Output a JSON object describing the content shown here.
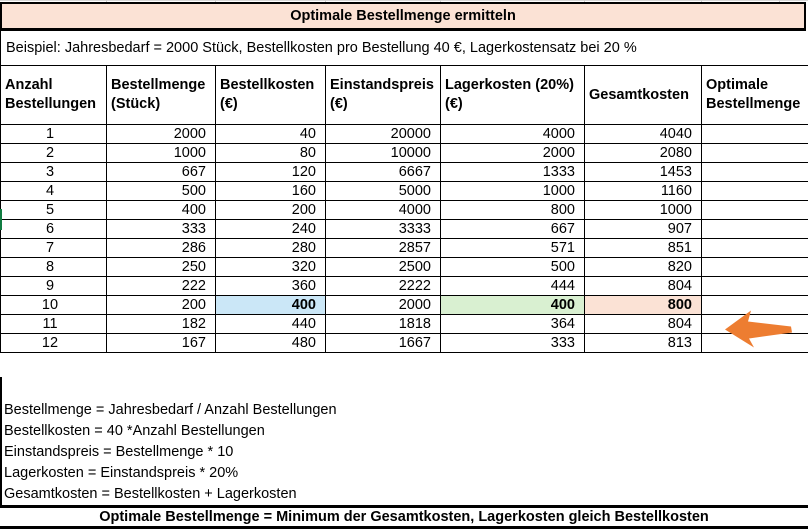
{
  "title": "Optimale Bestellmenge ermitteln",
  "example": "Beispiel: Jahresbedarf = 2000 Stück, Bestellkosten pro Bestellung 40 €, Lagerkostensatz bei 20 %",
  "table": {
    "headers": [
      "Anzahl\nBestellungen",
      "Bestellmenge\n(Stück)",
      "Bestellkosten\n(€)",
      "Einstandspreis\n(€)",
      "Lagerkosten (20%)\n(€)",
      "Gesamtkosten",
      "Optimale\nBestellmenge"
    ],
    "rows": [
      [
        "1",
        "2000",
        "40",
        "20000",
        "4000",
        "4040",
        ""
      ],
      [
        "2",
        "1000",
        "80",
        "10000",
        "2000",
        "2080",
        ""
      ],
      [
        "3",
        "667",
        "120",
        "6667",
        "1333",
        "1453",
        ""
      ],
      [
        "4",
        "500",
        "160",
        "5000",
        "1000",
        "1160",
        ""
      ],
      [
        "5",
        "400",
        "200",
        "4000",
        "800",
        "1000",
        ""
      ],
      [
        "6",
        "333",
        "240",
        "3333",
        "667",
        "907",
        ""
      ],
      [
        "7",
        "286",
        "280",
        "2857",
        "571",
        "851",
        ""
      ],
      [
        "8",
        "250",
        "320",
        "2500",
        "500",
        "820",
        ""
      ],
      [
        "9",
        "222",
        "360",
        "2222",
        "444",
        "804",
        ""
      ],
      [
        "10",
        "200",
        "400",
        "2000",
        "400",
        "800",
        ""
      ],
      [
        "11",
        "182",
        "440",
        "1818",
        "364",
        "804",
        ""
      ],
      [
        "12",
        "167",
        "480",
        "1667",
        "333",
        "813",
        ""
      ]
    ],
    "highlights": [
      {
        "row": 9,
        "col": 2,
        "color": "highlight_blue"
      },
      {
        "row": 9,
        "col": 4,
        "color": "highlight_green"
      },
      {
        "row": 9,
        "col": 5,
        "color": "highlight_salmon"
      }
    ]
  },
  "formulas": [
    "Bestellmenge = Jahresbedarf / Anzahl Bestellungen",
    "Bestellkosten = 40 *Anzahl Bestellungen",
    "Einstandspreis = Bestellmenge * 10",
    "Lagerkosten = Einstandspreis * 20%",
    "Gesamtkosten = Bestellkosten + Lagerkosten"
  ],
  "footer": "Optimale Bestellmenge = Minimum der Gesamtkosten, Lagerkosten gleich Bestellkosten",
  "icons": {
    "arrow": "left-arrow"
  },
  "colors": {
    "title_bg": "#FBE2D5",
    "highlight_blue": "#CBE7F7",
    "highlight_green": "#D9F0D1",
    "highlight_salmon": "#FBE2D5",
    "arrow": "#ED7D31",
    "selection_green": "#107C41"
  }
}
